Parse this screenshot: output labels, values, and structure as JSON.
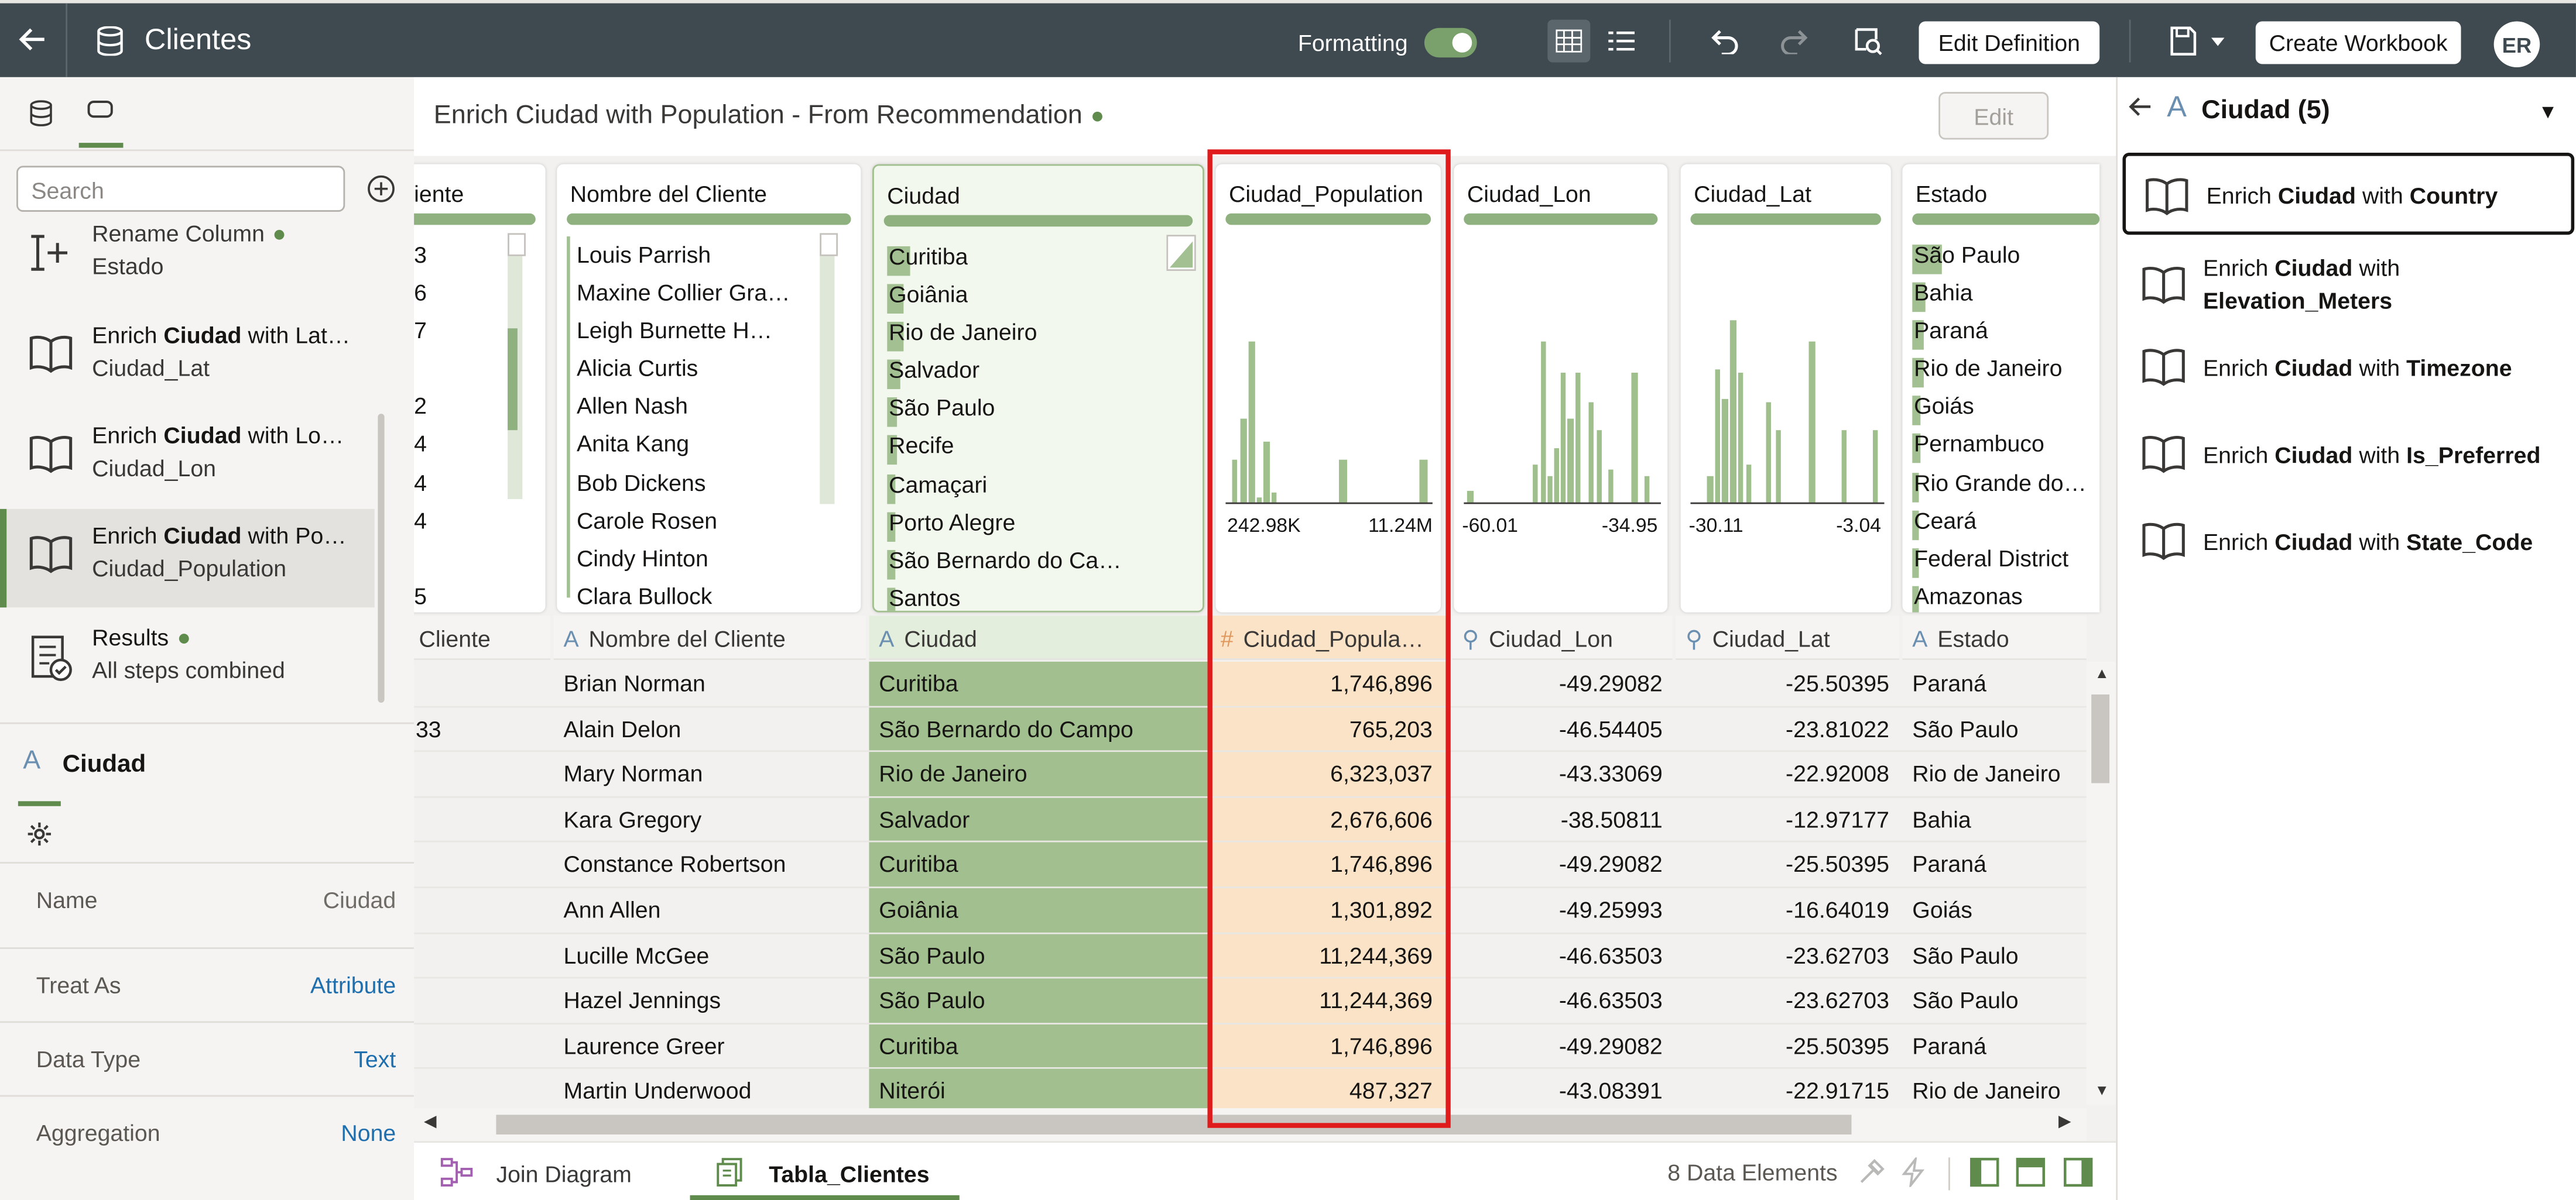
{
  "header": {
    "title": "Clientes",
    "formatting_label": "Formatting",
    "edit_definition": "Edit Definition",
    "create_workbook": "Create Workbook",
    "avatar_initials": "ER"
  },
  "left": {
    "search_placeholder": "Search",
    "steps": [
      {
        "prefix": "Rename Column",
        "bold": "",
        "suffix": "",
        "sub": "Estado",
        "dot": true
      },
      {
        "prefix": "Enrich ",
        "bold": "Ciudad",
        "suffix": " with Lat…",
        "sub": "Ciudad_Lat"
      },
      {
        "prefix": "Enrich ",
        "bold": "Ciudad",
        "suffix": " with Lo…",
        "sub": "Ciudad_Lon"
      },
      {
        "prefix": "Enrich ",
        "bold": "Ciudad",
        "suffix": " with Po…",
        "sub": "Ciudad_Population"
      },
      {
        "prefix": "Results",
        "bold": "",
        "suffix": "",
        "sub": "All steps combined",
        "dot": true
      }
    ],
    "column_title": "Ciudad",
    "props": [
      {
        "k": "Name",
        "v": "Ciudad"
      },
      {
        "k": "Treat As",
        "v": "Attribute"
      },
      {
        "k": "Data Type",
        "v": "Text"
      },
      {
        "k": "Aggregation",
        "v": "None"
      }
    ]
  },
  "center": {
    "step_title": "Enrich Ciudad with Population - From Recommendation",
    "edit_label": "Edit",
    "cards": {
      "cliente": {
        "title": "iente",
        "vals": [
          "3",
          "6",
          "7",
          "",
          "2",
          "4",
          "4",
          "4",
          "",
          "5"
        ]
      },
      "nombre": {
        "title": "Nombre del Cliente",
        "vals": [
          "Louis Parrish",
          "Maxine Collier Gra…",
          "Leigh Burnette H…",
          "Alicia Curtis",
          "Allen Nash",
          "Anita Kang",
          "Bob Dickens",
          "Carole Rosen",
          "Cindy Hinton",
          "Clara Bullock"
        ]
      },
      "ciudad": {
        "title": "Ciudad",
        "vals": [
          "Curitiba",
          "Goiânia",
          "Rio de Janeiro",
          "Salvador",
          "São Paulo",
          "Recife",
          "Camaçari",
          "Porto Alegre",
          "São Bernardo do Ca…",
          "Santos"
        ]
      },
      "pop": {
        "title": "Ciudad_Population",
        "min": "242.98K",
        "max": "11.24M"
      },
      "lon": {
        "title": "Ciudad_Lon",
        "min": "-60.01",
        "max": "-34.95"
      },
      "lat": {
        "title": "Ciudad_Lat",
        "min": "-30.11",
        "max": "-3.04"
      },
      "estado": {
        "title": "Estado",
        "vals": [
          "São Paulo",
          "Bahia",
          "Paraná",
          "Rio de Janeiro",
          "Goiás",
          "Pernambuco",
          "Rio Grande do…",
          "Ceará",
          "Federal District",
          "Amazonas"
        ]
      }
    },
    "headers": [
      "Cliente",
      "Nombre del Cliente",
      "Ciudad",
      "Ciudad_Popula…",
      "Ciudad_Lon",
      "Ciudad_Lat",
      "Estado"
    ],
    "rows": [
      [
        "",
        "Brian Norman",
        "Curitiba",
        "1,746,896",
        "-49.29082",
        "-25.50395",
        "Paraná"
      ],
      [
        "33",
        "Alain Delon",
        "São Bernardo do Campo",
        "765,203",
        "-46.54405",
        "-23.81022",
        "São Paulo"
      ],
      [
        "",
        "Mary Norman",
        "Rio de Janeiro",
        "6,323,037",
        "-43.33069",
        "-22.92008",
        "Rio de Janeiro"
      ],
      [
        "",
        "Kara Gregory",
        "Salvador",
        "2,676,606",
        "-38.50811",
        "-12.97177",
        "Bahia"
      ],
      [
        "",
        "Constance Robertson",
        "Curitiba",
        "1,746,896",
        "-49.29082",
        "-25.50395",
        "Paraná"
      ],
      [
        "",
        "Ann Allen",
        "Goiânia",
        "1,301,892",
        "-49.25993",
        "-16.64019",
        "Goiás"
      ],
      [
        "",
        "Lucille McGee",
        "São Paulo",
        "11,244,369",
        "-46.63503",
        "-23.62703",
        "São Paulo"
      ],
      [
        "",
        "Hazel Jennings",
        "São Paulo",
        "11,244,369",
        "-46.63503",
        "-23.62703",
        "São Paulo"
      ],
      [
        "",
        "Laurence Greer",
        "Curitiba",
        "1,746,896",
        "-49.29082",
        "-25.50395",
        "Paraná"
      ],
      [
        "",
        "Martin Underwood",
        "Niterói",
        "487,327",
        "-43.08391",
        "-22.91715",
        "Rio de Janeiro"
      ]
    ],
    "tabs": {
      "join": "Join Diagram",
      "table": "Tabla_Clientes"
    },
    "data_elements": "8 Data Elements"
  },
  "right": {
    "title": "Ciudad (5)",
    "recs": [
      {
        "pre": "Enrich ",
        "b1": "Ciudad",
        "mid": " with ",
        "b2": "Country"
      },
      {
        "pre": "Enrich ",
        "b1": "Ciudad",
        "mid": " with",
        "b2": "Elevation_Meters"
      },
      {
        "pre": "Enrich ",
        "b1": "Ciudad",
        "mid": " with ",
        "b2": "Timezone"
      },
      {
        "pre": "Enrich ",
        "b1": "Ciudad",
        "mid": " with ",
        "b2": "Is_Preferred"
      },
      {
        "pre": "Enrich ",
        "b1": "Ciudad",
        "mid": " with ",
        "b2": "State_Code"
      }
    ]
  },
  "colors": {
    "accent": "#5f8b4d",
    "highlight": "#e01b1b",
    "topbar": "#3f4a50"
  }
}
